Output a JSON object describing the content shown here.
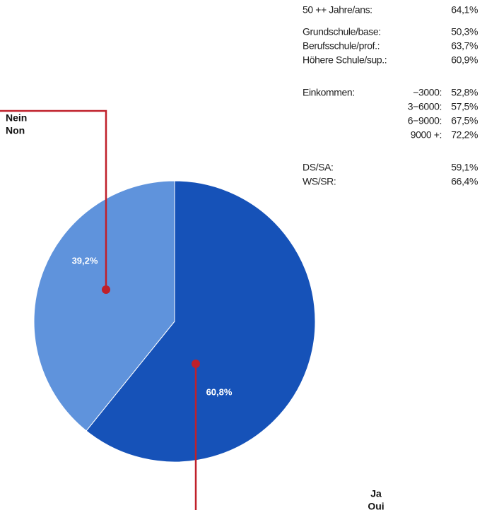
{
  "chart_data": {
    "type": "pie",
    "labels": [
      {
        "de": "Ja",
        "fr": "Oui"
      },
      {
        "de": "Nein",
        "fr": "Non"
      }
    ],
    "values": [
      60.8,
      39.2
    ],
    "value_labels": [
      "60,8%",
      "39,2%"
    ],
    "colors": [
      "#1652b8",
      "#5f93dc"
    ]
  },
  "table": {
    "groups": [
      {
        "rows": [
          {
            "label": "50 ++ Jahre/ans:",
            "value": "64,1%"
          }
        ]
      },
      {
        "rows": [
          {
            "label": "Grundschule/base:",
            "value": "50,3%"
          },
          {
            "label": "Berufsschule/prof.:",
            "value": "63,7%"
          },
          {
            "label": "Höhere Schule/sup.:",
            "value": "60,9%"
          }
        ]
      },
      {
        "heading": "Einkommen:",
        "rows": [
          {
            "label": "−3000:",
            "value": "52,8%"
          },
          {
            "label": "3−6000:",
            "value": "57,5%"
          },
          {
            "label": "6−9000:",
            "value": "67,5%"
          },
          {
            "label": "9000 +:",
            "value": "72,2%"
          }
        ]
      },
      {
        "rows": [
          {
            "label": "DS/SA:",
            "value": "59,1%"
          },
          {
            "label": "WS/SR:",
            "value": "66,4%"
          }
        ]
      }
    ]
  }
}
